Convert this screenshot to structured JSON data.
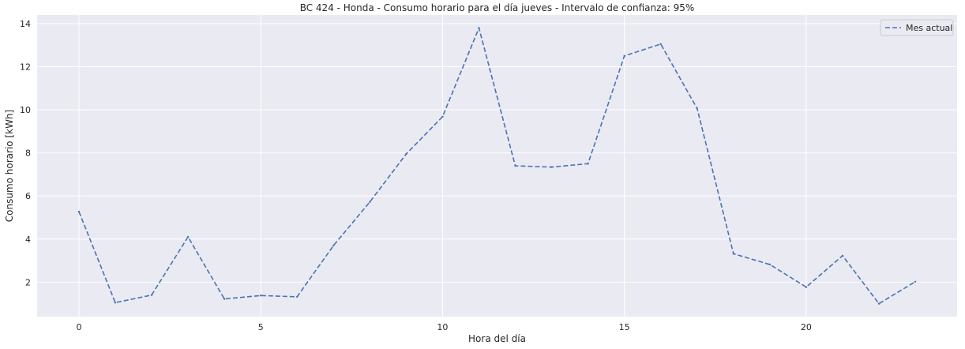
{
  "chart_data": {
    "type": "line",
    "title": "BC 424 - Honda - Consumo horario para el día jueves - Intervalo de confianza: 95%",
    "xlabel": "Hora del día",
    "ylabel": "Consumo horario [kWh]",
    "xlim": [
      -1.15,
      24.15
    ],
    "ylim": [
      0.4,
      14.4
    ],
    "xticks": [
      0,
      5,
      10,
      15,
      20
    ],
    "yticks": [
      2,
      4,
      6,
      8,
      10,
      12,
      14
    ],
    "grid": true,
    "legend_position": "top-right",
    "series": [
      {
        "name": "Mes actual",
        "color": "#4c72b0",
        "line_style": "dashed",
        "x": [
          0,
          1,
          2,
          3,
          4,
          5,
          6,
          7,
          8,
          9,
          10,
          11,
          12,
          13,
          14,
          15,
          16,
          17,
          18,
          19,
          20,
          21,
          22,
          23
        ],
        "values": [
          5.27,
          1.05,
          1.4,
          4.1,
          1.22,
          1.38,
          1.32,
          3.7,
          5.72,
          7.95,
          9.68,
          13.8,
          7.4,
          7.34,
          7.5,
          12.5,
          13.05,
          10.06,
          3.32,
          2.82,
          1.77,
          3.23,
          1.0,
          2.02
        ]
      }
    ]
  }
}
